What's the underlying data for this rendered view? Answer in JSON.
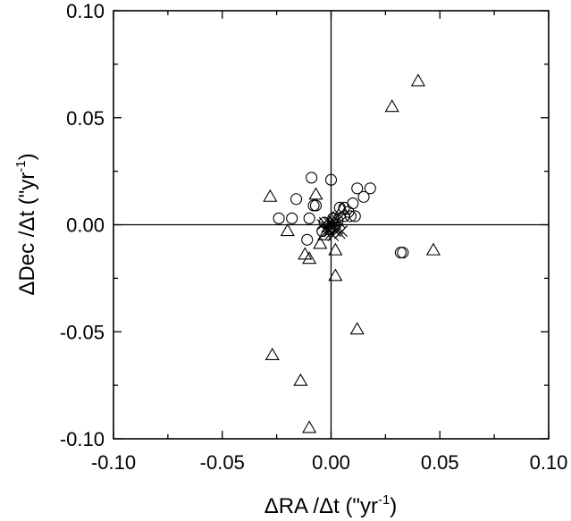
{
  "chart_data": {
    "type": "scatter",
    "title": "",
    "xlabel": "ΔRA /Δt (\"yr⁻¹)",
    "ylabel": "ΔDec /Δt (\"yr⁻¹)",
    "xlabel_parts": {
      "main": "ΔRA /Δt (\"yr",
      "sup": "-1",
      "end": ")"
    },
    "ylabel_parts": {
      "main": "ΔDec /Δt (\"yr",
      "sup": "-1",
      "end": ")"
    },
    "xlim": [
      -0.1,
      0.1
    ],
    "ylim": [
      -0.1,
      0.1
    ],
    "xticks": [
      "-0.10",
      "-0.05",
      "0.00",
      "0.05",
      "0.10"
    ],
    "yticks": [
      "0.10",
      "0.05",
      "0.00",
      "-0.05",
      "-0.10"
    ],
    "zero_lines": true,
    "grid": false,
    "legend": "none",
    "series": [
      {
        "marker": "triangle",
        "points": [
          [
            0.04,
            0.067
          ],
          [
            0.028,
            0.055
          ],
          [
            -0.028,
            0.013
          ],
          [
            -0.007,
            0.014
          ],
          [
            -0.02,
            -0.003
          ],
          [
            -0.012,
            -0.014
          ],
          [
            -0.01,
            -0.016
          ],
          [
            0.002,
            -0.012
          ],
          [
            0.002,
            -0.024
          ],
          [
            0.047,
            -0.012
          ],
          [
            0.012,
            -0.049
          ],
          [
            -0.027,
            -0.061
          ],
          [
            -0.014,
            -0.073
          ],
          [
            -0.01,
            -0.095
          ],
          [
            -0.005,
            -0.009
          ],
          [
            0.005,
            0.007
          ],
          [
            0.001,
            0.003
          ],
          [
            -0.003,
            -0.005
          ]
        ]
      },
      {
        "marker": "circle",
        "points": [
          [
            -0.009,
            0.022
          ],
          [
            0.0,
            0.021
          ],
          [
            0.018,
            0.017
          ],
          [
            0.012,
            0.017
          ],
          [
            0.015,
            0.013
          ],
          [
            -0.016,
            0.012
          ],
          [
            -0.008,
            0.009
          ],
          [
            -0.007,
            0.009
          ],
          [
            0.01,
            0.01
          ],
          [
            0.004,
            0.008
          ],
          [
            0.006,
            0.008
          ],
          [
            0.008,
            0.006
          ],
          [
            0.006,
            0.004
          ],
          [
            0.009,
            0.004
          ],
          [
            0.011,
            0.004
          ],
          [
            -0.024,
            0.003
          ],
          [
            -0.018,
            0.003
          ],
          [
            -0.01,
            0.003
          ],
          [
            0.001,
            0.003
          ],
          [
            0.003,
            0.002
          ],
          [
            -0.003,
            0.001
          ],
          [
            0.002,
            0.0
          ],
          [
            -0.004,
            -0.003
          ],
          [
            -0.011,
            -0.007
          ],
          [
            0.032,
            -0.013
          ],
          [
            0.033,
            -0.013
          ],
          [
            -0.001,
            -0.002
          ]
        ]
      },
      {
        "marker": "cross",
        "points": [
          [
            0.0,
            0.0
          ],
          [
            0.001,
            -0.001
          ],
          [
            -0.001,
            0.001
          ],
          [
            0.002,
            0.001
          ],
          [
            -0.002,
            -0.001
          ],
          [
            0.001,
            0.002
          ],
          [
            -0.001,
            -0.002
          ],
          [
            0.003,
            -0.002
          ],
          [
            -0.003,
            0.001
          ],
          [
            0.002,
            -0.003
          ],
          [
            -0.002,
            -0.003
          ],
          [
            0.004,
            0.001
          ],
          [
            0.0,
            -0.004
          ],
          [
            0.004,
            -0.004
          ],
          [
            -0.004,
            0.0
          ],
          [
            0.001,
            -0.005
          ],
          [
            0.005,
            -0.003
          ],
          [
            -0.001,
            -0.003
          ],
          [
            0.003,
            0.002
          ],
          [
            0.0,
            0.001
          ]
        ]
      }
    ]
  }
}
